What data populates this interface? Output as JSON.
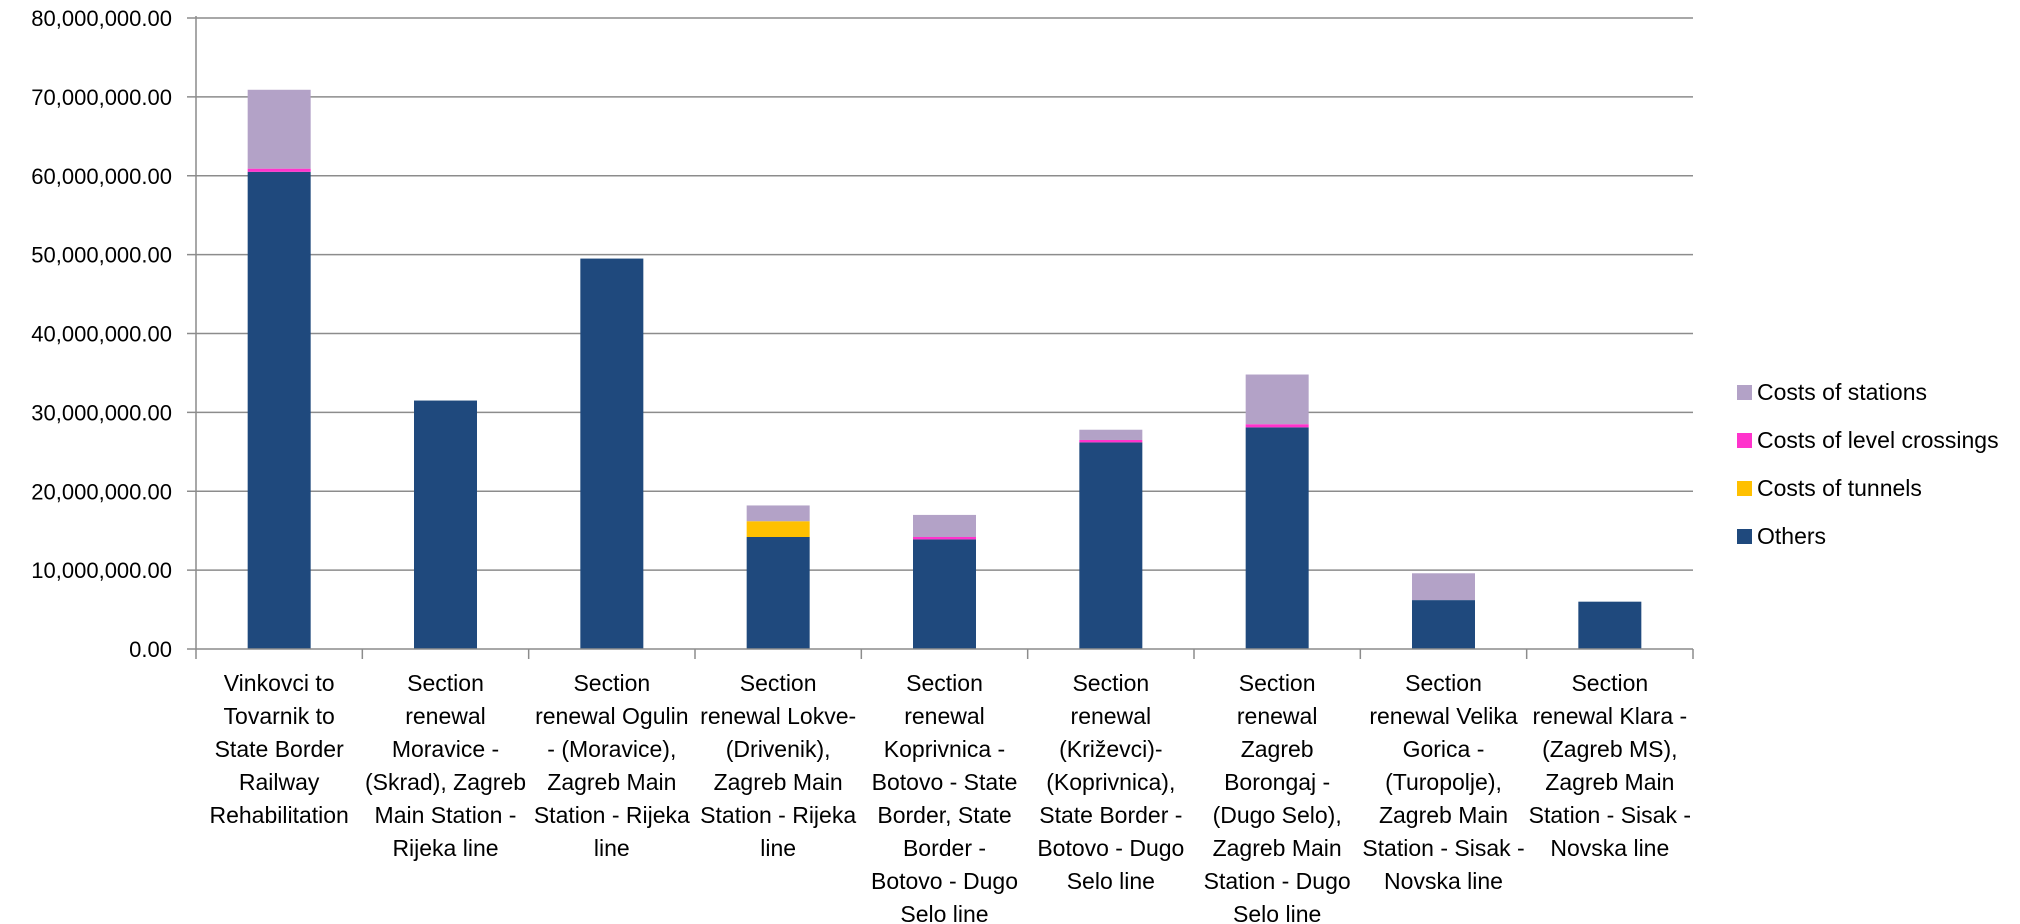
{
  "chart_data": {
    "type": "bar",
    "stacked": true,
    "categories": [
      "Vinkovci to Tovarnik to State Border Railway Rehabilitation",
      "Section renewal Moravice - (Skrad), Zagreb Main Station - Rijeka line",
      "Section renewal Ogulin - (Moravice), Zagreb Main Station - Rijeka line",
      "Section renewal Lokve- (Drivenik), Zagreb Main Station - Rijeka line",
      "Section renewal Koprivnica - Botovo - State Border, State Border - Botovo - Dugo Selo line",
      "Section renewal (Križevci)- (Koprivnica), State Border - Botovo - Dugo Selo line",
      "Section renewal Zagreb Borongaj - (Dugo Selo), Zagreb Main Station - Dugo Selo line",
      "Section renewal Velika Gorica - (Turopolje), Zagreb Main Station - Sisak - Novska line",
      "Section renewal Klara - (Zagreb MS), Zagreb Main Station - Sisak - Novska line"
    ],
    "category_lines": [
      [
        "Vinkovci to",
        "Tovarnik to",
        "State Border",
        "Railway",
        "Rehabilitation"
      ],
      [
        "Section",
        "renewal",
        "Moravice -",
        "(Skrad), Zagreb",
        "Main Station -",
        "Rijeka line"
      ],
      [
        "Section",
        "renewal Ogulin",
        "- (Moravice),",
        "Zagreb Main",
        "Station - Rijeka",
        "line"
      ],
      [
        "Section",
        "renewal Lokve-",
        "(Drivenik),",
        "Zagreb Main",
        "Station - Rijeka",
        "line"
      ],
      [
        "Section",
        "renewal",
        "Koprivnica -",
        "Botovo - State",
        "Border, State",
        "Border -",
        "Botovo - Dugo",
        "Selo line"
      ],
      [
        "Section",
        "renewal",
        "(Križevci)-",
        "(Koprivnica),",
        "State Border -",
        "Botovo - Dugo",
        "Selo line"
      ],
      [
        "Section",
        "renewal",
        "Zagreb",
        "Borongaj -",
        "(Dugo Selo),",
        "Zagreb Main",
        "Station - Dugo",
        "Selo line"
      ],
      [
        "Section",
        "renewal Velika",
        "Gorica -",
        "(Turopolje),",
        "Zagreb Main",
        "Station - Sisak -",
        "Novska line"
      ],
      [
        "Section",
        "renewal Klara -",
        "(Zagreb MS),",
        "Zagreb Main",
        "Station - Sisak -",
        "Novska line"
      ]
    ],
    "series": [
      {
        "name": "Others",
        "color": "#1f497d",
        "values": [
          60500000,
          31500000,
          49500000,
          14200000,
          13900000,
          26200000,
          28100000,
          6200000,
          6000000
        ]
      },
      {
        "name": "Costs of tunnels",
        "color": "#ffc000",
        "values": [
          0,
          0,
          0,
          2000000,
          0,
          0,
          0,
          0,
          0
        ]
      },
      {
        "name": "Costs of level crossings",
        "color": "#ff33cc",
        "values": [
          400000,
          0,
          0,
          0,
          300000,
          300000,
          400000,
          0,
          0
        ]
      },
      {
        "name": "Costs of stations",
        "color": "#b3a2c7",
        "values": [
          10000000,
          0,
          0,
          2000000,
          2800000,
          1300000,
          6300000,
          3400000,
          0
        ]
      }
    ],
    "legend_order": [
      "Costs of stations",
      "Costs of level crossings",
      "Costs of tunnels",
      "Others"
    ],
    "yticks": [
      "0.00",
      "10,000,000.00",
      "20,000,000.00",
      "30,000,000.00",
      "40,000,000.00",
      "50,000,000.00",
      "60,000,000.00",
      "70,000,000.00",
      "80,000,000.00"
    ],
    "ylim": [
      0,
      80000000
    ],
    "grid": true,
    "legend_position": "right",
    "title": "",
    "xlabel": "",
    "ylabel": ""
  }
}
